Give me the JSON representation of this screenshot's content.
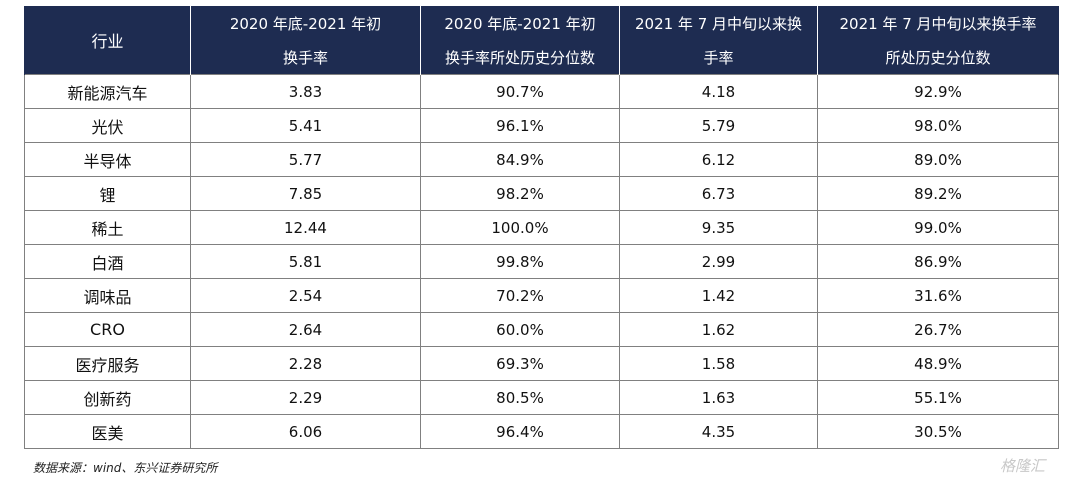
{
  "table": {
    "headers": {
      "industry": "行业",
      "col1_line1": "2020 年底-2021 年初",
      "col1_line2": "换手率",
      "col2_line1": "2020 年底-2021 年初",
      "col2_line2": "换手率所处历史分位数",
      "col3_line1": "2021 年 7 月中旬以来换",
      "col3_line2": "手率",
      "col4_line1": "2021 年 7 月中旬以来换手率",
      "col4_line2": "所处历史分位数"
    },
    "rows": [
      {
        "industry": "新能源汽车",
        "turnover_early": "3.83",
        "pct_early": "90.7%",
        "turnover_july": "4.18",
        "pct_july": "92.9%"
      },
      {
        "industry": "光伏",
        "turnover_early": "5.41",
        "pct_early": "96.1%",
        "turnover_july": "5.79",
        "pct_july": "98.0%"
      },
      {
        "industry": "半导体",
        "turnover_early": "5.77",
        "pct_early": "84.9%",
        "turnover_july": "6.12",
        "pct_july": "89.0%"
      },
      {
        "industry": "锂",
        "turnover_early": "7.85",
        "pct_early": "98.2%",
        "turnover_july": "6.73",
        "pct_july": "89.2%"
      },
      {
        "industry": "稀土",
        "turnover_early": "12.44",
        "pct_early": "100.0%",
        "turnover_july": "9.35",
        "pct_july": "99.0%"
      },
      {
        "industry": "白酒",
        "turnover_early": "5.81",
        "pct_early": "99.8%",
        "turnover_july": "2.99",
        "pct_july": "86.9%"
      },
      {
        "industry": "调味品",
        "turnover_early": "2.54",
        "pct_early": "70.2%",
        "turnover_july": "1.42",
        "pct_july": "31.6%"
      },
      {
        "industry": "CRO",
        "turnover_early": "2.64",
        "pct_early": "60.0%",
        "turnover_july": "1.62",
        "pct_july": "26.7%"
      },
      {
        "industry": "医疗服务",
        "turnover_early": "2.28",
        "pct_early": "69.3%",
        "turnover_july": "1.58",
        "pct_july": "48.9%"
      },
      {
        "industry": "创新药",
        "turnover_early": "2.29",
        "pct_early": "80.5%",
        "turnover_july": "1.63",
        "pct_july": "55.1%"
      },
      {
        "industry": "医美",
        "turnover_early": "6.06",
        "pct_early": "96.4%",
        "turnover_july": "4.35",
        "pct_july": "30.5%"
      }
    ]
  },
  "footer": {
    "source": "数据来源：wind、东兴证券研究所"
  },
  "watermark": {
    "text": "格隆汇"
  },
  "colors": {
    "header_bg": "#1e2c51",
    "header_text": "#ffffff",
    "grid": "#808080"
  }
}
